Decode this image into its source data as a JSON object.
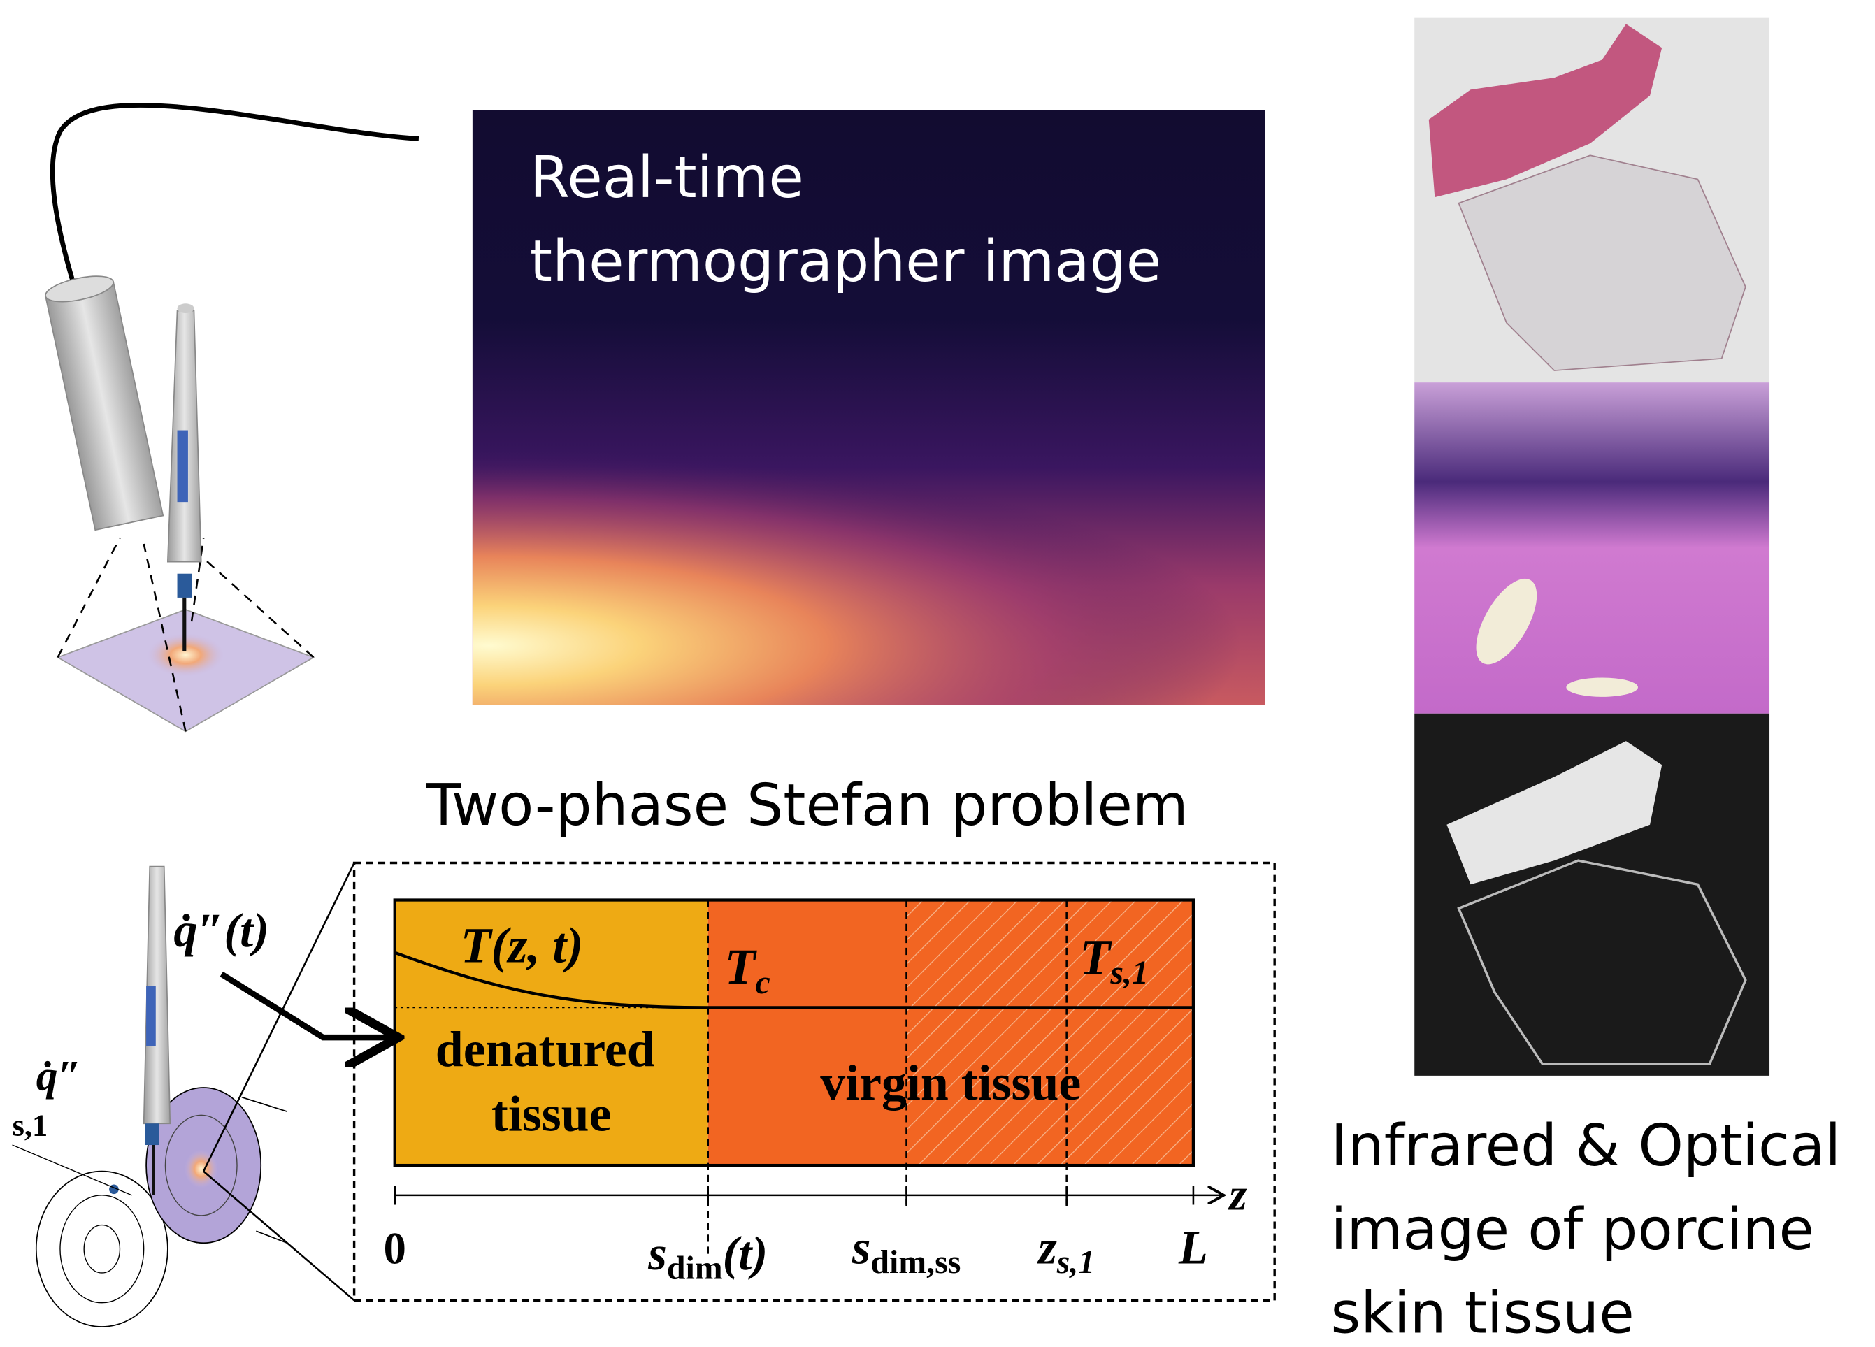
{
  "thermal": {
    "title_lines": [
      "Real-time",
      "thermographer image"
    ]
  },
  "stefan": {
    "title": "Two-phase Stefan problem",
    "temperature": {
      "base": "T",
      "arg": "(z, t)"
    },
    "critical_temp": {
      "base": "T",
      "sub": "c"
    },
    "surface_temp": {
      "base": "T",
      "sub": "s,1"
    },
    "denatured_lines": [
      "denatured",
      "tissue"
    ],
    "virgin": "virgin tissue",
    "axis_var": "z",
    "axis_labels": {
      "origin": "0",
      "front": {
        "base": "s",
        "sub": "dim",
        "arg": "(t)"
      },
      "steady": {
        "base": "s",
        "sub": "dim,ss"
      },
      "depth": {
        "base": "z",
        "sub": "s,1"
      },
      "length": "L"
    },
    "heat_flux": {
      "base": "q̇″",
      "arg": "(t)"
    },
    "flux_small": {
      "base": "q̇″",
      "sub": "s,1"
    }
  },
  "histology": {
    "caption_lines": [
      "Infrared & Optical",
      "image of porcine",
      "skin tissue"
    ]
  }
}
